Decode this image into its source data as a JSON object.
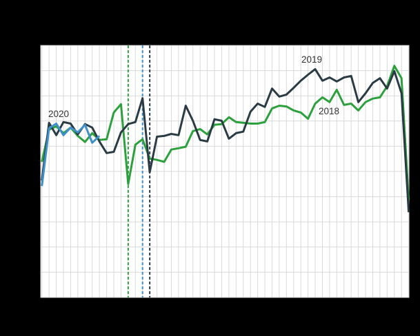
{
  "page": {
    "background_color": "#000000",
    "plot_background_color": "#ffffff",
    "grid_color": "#d9d9d9",
    "label_text_color": "#333333"
  },
  "chart_data": {
    "type": "line",
    "title": "",
    "xlabel": "",
    "ylabel": "",
    "x_unit": "week",
    "x_range": [
      1,
      52
    ],
    "ylim_gridline_units": [
      0,
      10
    ],
    "grid": true,
    "legend_position": "inline-labels",
    "vertical_markers": [
      {
        "name": "dashed-marker-green",
        "week": 13,
        "color": "#2f9e41",
        "style": "dashed"
      },
      {
        "name": "dashed-marker-blue",
        "week": 15,
        "color": "#3e8fca",
        "style": "dashed"
      },
      {
        "name": "dashed-marker-dark",
        "week": 16,
        "color": "#2a3b44",
        "style": "dashed"
      }
    ],
    "series": [
      {
        "name": "2018",
        "label": "2018",
        "color": "#2ca03c",
        "start_week": 1,
        "label_anchor": {
          "week": 39.5,
          "value": 7.15
        },
        "values": [
          5.38,
          6.66,
          6.79,
          6.52,
          6.74,
          6.41,
          6.17,
          6.52,
          6.25,
          6.28,
          7.34,
          7.67,
          4.5,
          6.06,
          6.28,
          5.51,
          5.46,
          5.38,
          5.87,
          5.92,
          5.98,
          6.6,
          6.68,
          6.47,
          6.85,
          6.88,
          7.15,
          6.96,
          6.93,
          6.9,
          6.9,
          6.96,
          7.5,
          7.61,
          7.58,
          7.42,
          7.34,
          7.09,
          7.69,
          7.94,
          7.75,
          8.24,
          7.64,
          7.69,
          7.42,
          7.75,
          7.89,
          7.94,
          8.38,
          9.19,
          8.7,
          3.87
        ]
      },
      {
        "name": "2019",
        "label": "2019",
        "color": "#2a3b44",
        "start_week": 1,
        "label_anchor": {
          "week": 37.1,
          "value": 9.25
        },
        "values": [
          4.64,
          6.93,
          6.44,
          6.96,
          6.9,
          6.47,
          6.88,
          6.74,
          6.19,
          5.73,
          5.78,
          6.55,
          6.88,
          6.96,
          7.91,
          4.97,
          6.38,
          6.41,
          6.49,
          6.44,
          7.61,
          7.01,
          6.25,
          6.19,
          7.07,
          7.01,
          6.3,
          6.52,
          6.58,
          7.37,
          7.69,
          7.56,
          8.29,
          7.97,
          8.05,
          8.32,
          8.6,
          8.84,
          9.06,
          8.6,
          8.73,
          8.57,
          8.73,
          8.79,
          7.75,
          8.1,
          8.51,
          8.7,
          8.29,
          8.98,
          8.1,
          3.38
        ]
      },
      {
        "name": "2020",
        "label": "2020",
        "color": "#3e8fca",
        "start_week": 1,
        "label_anchor": {
          "week": 1.9,
          "value": 7.1
        },
        "values": [
          4.42,
          6.71,
          6.9,
          6.44,
          6.74,
          6.55,
          6.85,
          6.14,
          6.41
        ]
      }
    ]
  }
}
